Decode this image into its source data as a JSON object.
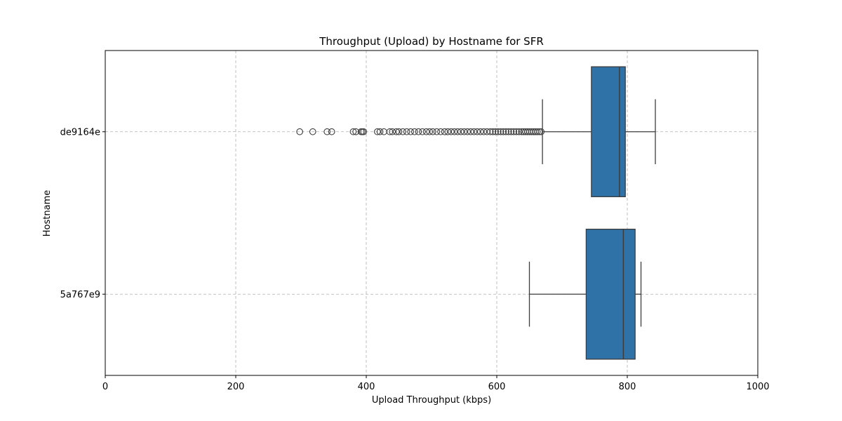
{
  "chart_data": {
    "type": "box",
    "orientation": "horizontal",
    "title": "Throughput (Upload) by Hostname for SFR",
    "xlabel": "Upload Throughput (kbps)",
    "ylabel": "Hostname",
    "xlim": [
      0,
      1000
    ],
    "xticks": [
      0,
      200,
      400,
      600,
      800,
      1000
    ],
    "grid": true,
    "box_color": "#2f72a8",
    "categories": [
      "de9164e",
      "5a767e9"
    ],
    "boxes": [
      {
        "name": "de9164e",
        "whisker_low": 670,
        "q1": 745,
        "median": 788,
        "q3": 797,
        "whisker_high": 843,
        "fliers": [
          298,
          318,
          340,
          347,
          380,
          384,
          392,
          394,
          396,
          417,
          421,
          427,
          436,
          440,
          446,
          450,
          456,
          462,
          468,
          474,
          480,
          486,
          492,
          497,
          502,
          508,
          514,
          520,
          525,
          530,
          535,
          540,
          545,
          550,
          555,
          560,
          565,
          570,
          575,
          580,
          585,
          590,
          594,
          598,
          602,
          606,
          610,
          614,
          618,
          622,
          626,
          630,
          634,
          638,
          641,
          644,
          647,
          650,
          653,
          656,
          659,
          662,
          665,
          668
        ]
      },
      {
        "name": "5a767e9",
        "whisker_low": 650,
        "q1": 737,
        "median": 794,
        "q3": 812,
        "whisker_high": 821,
        "fliers": []
      }
    ]
  }
}
